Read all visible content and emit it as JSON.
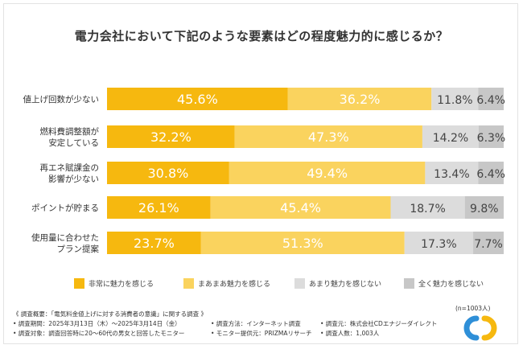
{
  "chart_data": {
    "type": "bar",
    "stacked": true,
    "orientation": "horizontal",
    "normalized_percent": true,
    "title": "電力会社において下記のような要素はどの程度魅力的に感じるか？",
    "categories": [
      [
        "値上げ回数が少ない"
      ],
      [
        "燃料費調整額が",
        "安定している"
      ],
      [
        "再エネ賦課金の",
        "影響が少ない"
      ],
      [
        "ポイントが貯まる"
      ],
      [
        "使用量に合わせた",
        "プラン提案"
      ]
    ],
    "series": [
      {
        "name": "非常に魅力を感じる",
        "color": "#F6B80F",
        "values": [
          45.6,
          32.2,
          30.8,
          26.1,
          23.7
        ]
      },
      {
        "name": "まあまあ魅力を感じる",
        "color": "#FAD35E",
        "values": [
          36.2,
          47.3,
          49.4,
          45.4,
          51.3
        ]
      },
      {
        "name": "あまり魅力を感じない",
        "color": "#DCDCDC",
        "values": [
          11.8,
          14.2,
          13.4,
          18.7,
          17.3
        ]
      },
      {
        "name": "全く魅力を感じない",
        "color": "#C7C7C7",
        "values": [
          6.4,
          6.3,
          6.4,
          9.8,
          7.7
        ]
      }
    ],
    "value_suffix": "%",
    "legend_position": "bottom",
    "grid": false,
    "xlim": [
      0,
      100
    ]
  },
  "sample_note": "(n=1003人)",
  "footer": {
    "heading": "《 調査概要：「電気料金値上げに対する消費者の意識」に関する調査 》",
    "rows": [
      [
        "• 調査期間：2025年3月13日（木）～2025年3月14日（金）",
        "• 調査方法：インターネット調査",
        "• 調査元：株式会社CDエナジーダイレクト"
      ],
      [
        "• 調査対象：調査回答時に20〜60代の男女と回答したモニター",
        "• モニター提供元：PRIZMAリサーチ",
        "• 調査人数：1,003人"
      ]
    ]
  },
  "logo": {
    "colors": {
      "blue": "#2E8FD8",
      "yellow": "#F6B80F"
    }
  }
}
